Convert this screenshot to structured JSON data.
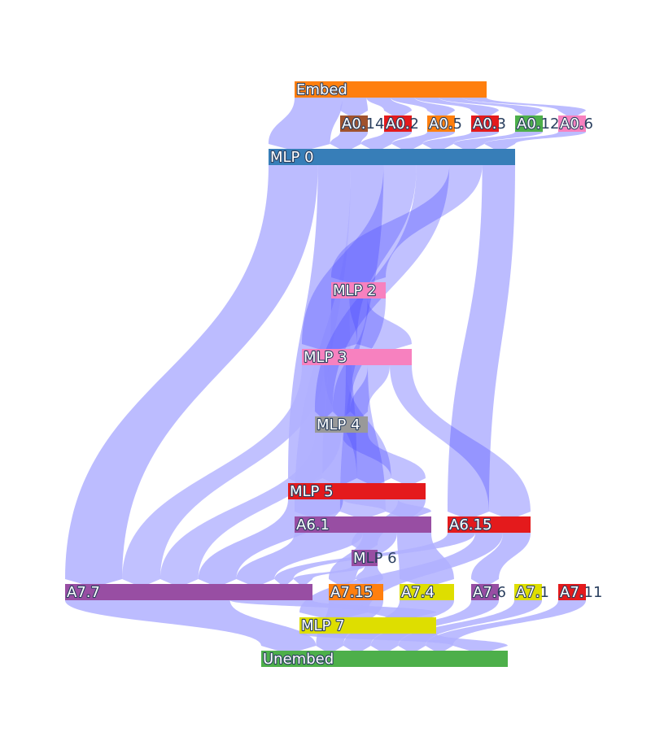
{
  "link_color": "#b0b0ff",
  "link_dense_color": "#4d4dff",
  "nodes": [
    {
      "id": "embed",
      "label": "Embed",
      "color": "#ff7f0e"
    },
    {
      "id": "a0_14",
      "label": "A0.14",
      "color": "#a0522d"
    },
    {
      "id": "a0_2",
      "label": "A0.2",
      "color": "#e41a1c"
    },
    {
      "id": "a0_5",
      "label": "A0.5",
      "color": "#ff7f0e"
    },
    {
      "id": "a0_3",
      "label": "A0.3",
      "color": "#e41a1c"
    },
    {
      "id": "a0_12",
      "label": "A0.12",
      "color": "#4daf4a"
    },
    {
      "id": "a0_6",
      "label": "A0.6",
      "color": "#f781bf"
    },
    {
      "id": "mlp0",
      "label": "MLP 0",
      "color": "#377eb8"
    },
    {
      "id": "mlp2",
      "label": "MLP 2",
      "color": "#f781bf"
    },
    {
      "id": "mlp3",
      "label": "MLP 3",
      "color": "#f781bf"
    },
    {
      "id": "mlp4",
      "label": "MLP 4",
      "color": "#999999"
    },
    {
      "id": "mlp5",
      "label": "MLP 5",
      "color": "#e41a1c"
    },
    {
      "id": "a6_1",
      "label": "A6.1",
      "color": "#984ea3"
    },
    {
      "id": "a6_15",
      "label": "A6.15",
      "color": "#e41a1c"
    },
    {
      "id": "mlp6",
      "label": "MLP 6",
      "color": "#984ea3"
    },
    {
      "id": "a7_7",
      "label": "A7.7",
      "color": "#984ea3"
    },
    {
      "id": "a7_15",
      "label": "A7.15",
      "color": "#ff7f0e"
    },
    {
      "id": "a7_4",
      "label": "A7.4",
      "color": "#dede00"
    },
    {
      "id": "a7_6",
      "label": "A7.6",
      "color": "#984ea3"
    },
    {
      "id": "a7_1",
      "label": "A7.1",
      "color": "#dede00"
    },
    {
      "id": "a7_11",
      "label": "A7.11",
      "color": "#e41a1c"
    },
    {
      "id": "mlp7",
      "label": "MLP 7",
      "color": "#dede00"
    },
    {
      "id": "unembed",
      "label": "Unembed",
      "color": "#4daf4a"
    }
  ],
  "links": [
    {
      "source": "embed",
      "target": "mlp0",
      "weight": 2
    },
    {
      "source": "embed",
      "target": "a0_14",
      "weight": 1
    },
    {
      "source": "embed",
      "target": "a0_2",
      "weight": 1
    },
    {
      "source": "embed",
      "target": "a0_5",
      "weight": 1
    },
    {
      "source": "embed",
      "target": "a0_3",
      "weight": 1
    },
    {
      "source": "embed",
      "target": "a0_12",
      "weight": 1
    },
    {
      "source": "embed",
      "target": "a0_6",
      "weight": 1
    },
    {
      "source": "a0_14",
      "target": "mlp0",
      "weight": 1
    },
    {
      "source": "a0_2",
      "target": "mlp0",
      "weight": 1
    },
    {
      "source": "a0_5",
      "target": "mlp0",
      "weight": 1
    },
    {
      "source": "a0_3",
      "target": "mlp0",
      "weight": 1
    },
    {
      "source": "a0_12",
      "target": "mlp0",
      "weight": 1
    },
    {
      "source": "a0_6",
      "target": "mlp0",
      "weight": 1
    },
    {
      "source": "mlp0",
      "target": "a7_7",
      "weight": 3
    },
    {
      "source": "mlp0",
      "target": "mlp2",
      "weight": 2
    },
    {
      "source": "mlp0",
      "target": "mlp3",
      "weight": 2
    },
    {
      "source": "mlp0",
      "target": "mlp4",
      "weight": 2
    },
    {
      "source": "mlp0",
      "target": "mlp5",
      "weight": 2
    },
    {
      "source": "mlp0",
      "target": "a6_15",
      "weight": 2
    },
    {
      "source": "mlp0",
      "target": "a6_1",
      "weight": 2
    },
    {
      "source": "mlp2",
      "target": "mlp3",
      "weight": 2
    },
    {
      "source": "mlp2",
      "target": "mlp4",
      "weight": 2
    },
    {
      "source": "mlp2",
      "target": "mlp5",
      "weight": 2
    },
    {
      "source": "mlp3",
      "target": "mlp4",
      "weight": 2
    },
    {
      "source": "mlp3",
      "target": "mlp5",
      "weight": 2
    },
    {
      "source": "mlp3",
      "target": "a6_1",
      "weight": 2
    },
    {
      "source": "mlp3",
      "target": "a6_15",
      "weight": 2
    },
    {
      "source": "mlp3",
      "target": "a7_7",
      "weight": 2
    },
    {
      "source": "mlp4",
      "target": "mlp5",
      "weight": 2
    },
    {
      "source": "mlp4",
      "target": "a7_7",
      "weight": 2
    },
    {
      "source": "mlp5",
      "target": "a7_7",
      "weight": 2
    },
    {
      "source": "mlp5",
      "target": "a6_1",
      "weight": 2
    },
    {
      "source": "mlp5",
      "target": "mlp6",
      "weight": 1
    },
    {
      "source": "a6_1",
      "target": "a7_7",
      "weight": 2
    },
    {
      "source": "a6_1",
      "target": "a7_15",
      "weight": 1
    },
    {
      "source": "a6_1",
      "target": "a7_4",
      "weight": 1
    },
    {
      "source": "a6_15",
      "target": "a7_6",
      "weight": 1
    },
    {
      "source": "a6_15",
      "target": "mlp7",
      "weight": 1
    },
    {
      "source": "a6_15",
      "target": "a7_7",
      "weight": 1
    },
    {
      "source": "mlp6",
      "target": "a7_7",
      "weight": 1
    },
    {
      "source": "mlp6",
      "target": "a7_15",
      "weight": 1
    },
    {
      "source": "a7_7",
      "target": "unembed",
      "weight": 2
    },
    {
      "source": "a7_7",
      "target": "mlp7",
      "weight": 1
    },
    {
      "source": "a7_15",
      "target": "unembed",
      "weight": 1
    },
    {
      "source": "a7_4",
      "target": "unembed",
      "weight": 1
    },
    {
      "source": "a7_6",
      "target": "unembed",
      "weight": 1
    },
    {
      "source": "a7_1",
      "target": "unembed",
      "weight": 1
    },
    {
      "source": "a7_11",
      "target": "unembed",
      "weight": 1
    },
    {
      "source": "mlp7",
      "target": "unembed",
      "weight": 2
    }
  ]
}
